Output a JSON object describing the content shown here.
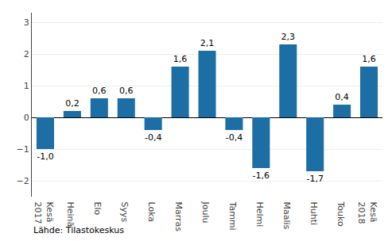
{
  "chart_data": {
    "type": "bar",
    "categories": [
      "Kesä\n2017",
      "Heinä",
      "Elo",
      "Syys",
      "Loka",
      "Marras",
      "Joulu",
      "Tammi",
      "Helmi",
      "Maalis",
      "Huhti",
      "Touko",
      "Kesä\n2018"
    ],
    "values": [
      -1.0,
      0.2,
      0.6,
      0.6,
      -0.4,
      1.6,
      2.1,
      -0.4,
      -1.6,
      2.3,
      -1.7,
      0.4,
      1.6
    ],
    "value_labels": [
      "-1,0",
      "0,2",
      "0,6",
      "0,6",
      "-0,4",
      "1,6",
      "2,1",
      "-0,4",
      "-1,6",
      "2,3",
      "-1,7",
      "0,4",
      "1,6"
    ],
    "data_labels": true,
    "color": "#1c6ea4",
    "ylim": [
      -2.5,
      3.3
    ],
    "yticks": [
      -2,
      -1,
      0,
      1,
      2,
      3
    ],
    "grid": true,
    "annotations": [
      "Lähde: Tilastokeskus"
    ]
  }
}
